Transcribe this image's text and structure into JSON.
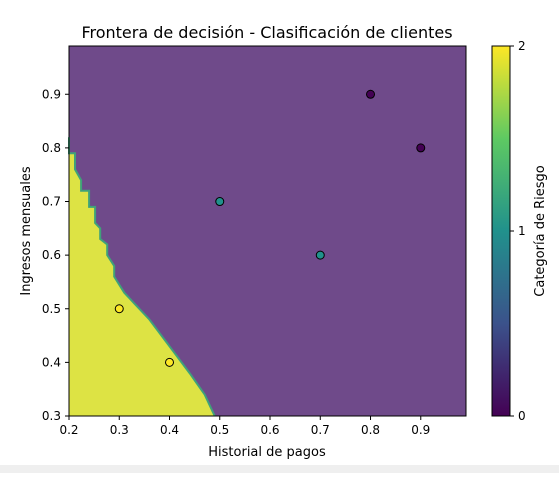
{
  "chart_data": {
    "type": "scatter",
    "title": "Frontera de decisión - Clasificación de clientes",
    "xlabel": "Historial de pagos",
    "ylabel": "Ingresos mensuales",
    "xlim": [
      0.2,
      0.99
    ],
    "ylim": [
      0.3,
      0.99
    ],
    "xticks": [
      "0.2",
      "0.3",
      "0.4",
      "0.5",
      "0.6",
      "0.7",
      "0.8",
      "0.9"
    ],
    "yticks": [
      "0.3",
      "0.4",
      "0.5",
      "0.6",
      "0.7",
      "0.8",
      "0.9"
    ],
    "grid": false,
    "decision_regions": [
      {
        "class": 0,
        "color": "#6f4a8a",
        "description_boundary_y": "upper-right region"
      },
      {
        "class": 2,
        "color": "#dde344"
      }
    ],
    "decision_boundary": {
      "between_classes": [
        0,
        2
      ],
      "points": [
        {
          "x": 0.2,
          "y": 0.82
        },
        {
          "x": 0.2,
          "y": 0.79
        },
        {
          "x": 0.212,
          "y": 0.79
        },
        {
          "x": 0.212,
          "y": 0.76
        },
        {
          "x": 0.224,
          "y": 0.74
        },
        {
          "x": 0.224,
          "y": 0.72
        },
        {
          "x": 0.24,
          "y": 0.72
        },
        {
          "x": 0.24,
          "y": 0.69
        },
        {
          "x": 0.252,
          "y": 0.69
        },
        {
          "x": 0.252,
          "y": 0.66
        },
        {
          "x": 0.262,
          "y": 0.65
        },
        {
          "x": 0.262,
          "y": 0.63
        },
        {
          "x": 0.276,
          "y": 0.62
        },
        {
          "x": 0.276,
          "y": 0.6
        },
        {
          "x": 0.29,
          "y": 0.58
        },
        {
          "x": 0.29,
          "y": 0.56
        },
        {
          "x": 0.31,
          "y": 0.53
        },
        {
          "x": 0.33,
          "y": 0.51
        },
        {
          "x": 0.36,
          "y": 0.48
        },
        {
          "x": 0.4,
          "y": 0.43
        },
        {
          "x": 0.44,
          "y": 0.38
        },
        {
          "x": 0.47,
          "y": 0.34
        },
        {
          "x": 0.48,
          "y": 0.32
        },
        {
          "x": 0.49,
          "y": 0.3
        }
      ]
    },
    "series": [
      {
        "class": 0,
        "color": "#440154",
        "points": [
          {
            "x": 0.8,
            "y": 0.9
          },
          {
            "x": 0.9,
            "y": 0.8
          }
        ]
      },
      {
        "class": 1,
        "color": "#21918c",
        "points": [
          {
            "x": 0.5,
            "y": 0.7
          },
          {
            "x": 0.7,
            "y": 0.6
          }
        ]
      },
      {
        "class": 2,
        "color": "#fde725",
        "points": [
          {
            "x": 0.3,
            "y": 0.5
          },
          {
            "x": 0.4,
            "y": 0.4
          }
        ]
      }
    ],
    "colorbar": {
      "label": "Categoría de Riesgo",
      "min": 0,
      "max": 2,
      "ticks": [
        "0",
        "1",
        "2"
      ],
      "colormap": [
        "#440154",
        "#3b528b",
        "#21918c",
        "#5ec962",
        "#fde725"
      ]
    }
  }
}
